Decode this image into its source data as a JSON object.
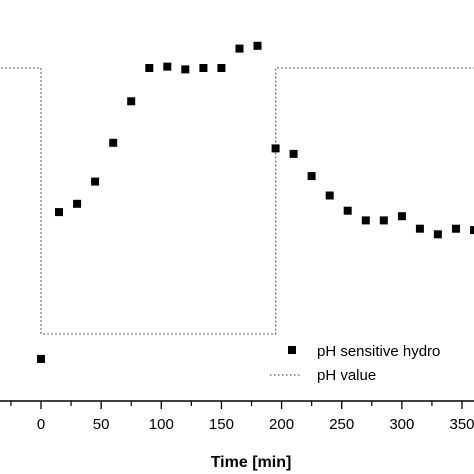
{
  "chart_data": {
    "type": "scatter",
    "xlabel": "Time [min]",
    "ylabel": "",
    "xlim": [
      -33,
      368
    ],
    "x_ticks": [
      0,
      50,
      100,
      150,
      200,
      250,
      300,
      350
    ],
    "x_tick_labels": [
      "0",
      "50",
      "100",
      "150",
      "200",
      "250",
      "300",
      "350"
    ],
    "x_minor_ticks": [
      -25,
      25,
      75,
      125,
      175,
      225,
      275,
      325
    ],
    "y_ticks_shown": false,
    "grid": false,
    "legend_placement": "bottom-right",
    "series": [
      {
        "name": "pH sensitive hydro",
        "marker": "square",
        "color": "#000000",
        "x": [
          0,
          15,
          30,
          45,
          60,
          75,
          90,
          105,
          120,
          135,
          150,
          165,
          180,
          195,
          210,
          225,
          240,
          255,
          270,
          285,
          300,
          315,
          330,
          345,
          360
        ],
        "y": [
          0.05,
          0.58,
          0.61,
          0.69,
          0.83,
          0.98,
          1.1,
          1.105,
          1.095,
          1.1,
          1.1,
          1.17,
          1.18,
          0.81,
          0.79,
          0.71,
          0.64,
          0.585,
          0.55,
          0.55,
          0.565,
          0.52,
          0.5,
          0.52,
          0.515
        ]
      },
      {
        "name": "pH value",
        "style": "dotted",
        "color": "#555555",
        "x": [
          -33,
          0,
          0,
          195,
          195,
          368
        ],
        "y": [
          1.1,
          1.1,
          0.14,
          0.14,
          1.1,
          1.1
        ]
      }
    ],
    "legend": [
      "pH sensitive hydro",
      "pH value"
    ]
  }
}
